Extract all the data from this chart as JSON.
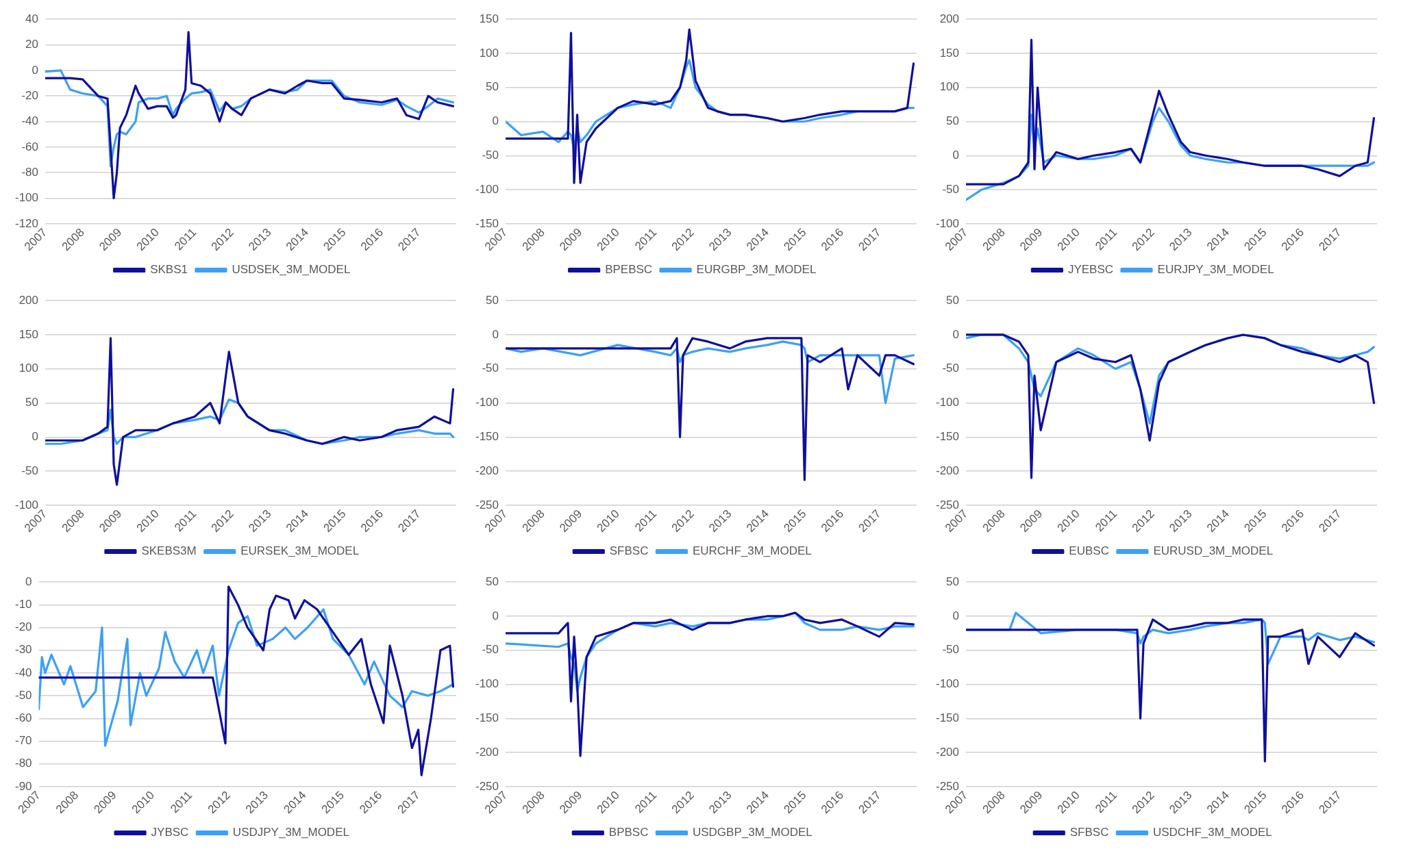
{
  "chart_data": [
    {
      "type": "line",
      "xlim": [
        "2007",
        "2018"
      ],
      "xticks": [
        "2007",
        "2008",
        "2009",
        "2010",
        "2011",
        "2012",
        "2013",
        "2014",
        "2015",
        "2016",
        "2017"
      ],
      "ylim": [
        -120,
        40
      ],
      "yticks": [
        -120,
        -100,
        -80,
        -60,
        -40,
        -20,
        0,
        20,
        40
      ],
      "grid": "y",
      "legend": "bottom",
      "x": [
        "2007-01",
        "2007-06",
        "2007-09",
        "2008-01",
        "2008-06",
        "2008-09",
        "2008-10",
        "2008-11",
        "2008-12",
        "2009-01",
        "2009-03",
        "2009-06",
        "2009-07",
        "2009-10",
        "2010-01",
        "2010-04",
        "2010-06",
        "2010-07",
        "2010-10",
        "2010-11",
        "2010-12",
        "2011-03",
        "2011-06",
        "2011-09",
        "2011-11",
        "2012-01",
        "2012-04",
        "2012-07",
        "2013-01",
        "2013-06",
        "2013-10",
        "2014-01",
        "2014-06",
        "2014-09",
        "2015-01",
        "2015-06",
        "2016-01",
        "2016-06",
        "2016-09",
        "2017-01",
        "2017-04",
        "2017-07",
        "2017-12"
      ],
      "series": [
        {
          "name": "SKBS1",
          "color": "#0f0f9e",
          "values": [
            -6,
            -6,
            -6,
            -7,
            -20,
            -22,
            -60,
            -100,
            -80,
            -45,
            -35,
            -12,
            -18,
            -30,
            -28,
            -28,
            -37,
            -35,
            -15,
            30,
            -10,
            -12,
            -18,
            -40,
            -25,
            -30,
            -35,
            -22,
            -15,
            -18,
            -12,
            -8,
            -10,
            -10,
            -22,
            -23,
            -25,
            -22,
            -35,
            -38,
            -20,
            -25,
            -28
          ]
        },
        {
          "name": "USDSEK_3M_MODEL",
          "color": "#3ba0f7",
          "values": [
            -1,
            0,
            -15,
            -18,
            -20,
            -28,
            -75,
            -60,
            -50,
            -48,
            -50,
            -40,
            -25,
            -22,
            -22,
            -20,
            -35,
            -30,
            -22,
            -20,
            -18,
            -17,
            -15,
            -32,
            -25,
            -30,
            -28,
            -22,
            -15,
            -17,
            -15,
            -8,
            -8,
            -8,
            -20,
            -25,
            -27,
            -23,
            -28,
            -33,
            -28,
            -22,
            -25
          ]
        }
      ]
    },
    {
      "type": "line",
      "xlim": [
        "2007",
        "2018"
      ],
      "xticks": [
        "2007",
        "2008",
        "2009",
        "2010",
        "2011",
        "2012",
        "2013",
        "2014",
        "2015",
        "2016",
        "2017"
      ],
      "ylim": [
        -150,
        150
      ],
      "yticks": [
        -150,
        -100,
        -50,
        0,
        50,
        100,
        150
      ],
      "grid": "y",
      "legend": "bottom",
      "x": [
        "2007-01",
        "2007-06",
        "2008-01",
        "2008-06",
        "2008-09",
        "2008-10",
        "2008-11",
        "2008-12",
        "2009-01",
        "2009-03",
        "2009-06",
        "2010-01",
        "2010-06",
        "2011-01",
        "2011-06",
        "2011-09",
        "2011-11",
        "2011-12",
        "2012-02",
        "2012-06",
        "2012-09",
        "2013-01",
        "2013-06",
        "2014-01",
        "2014-06",
        "2015-01",
        "2015-06",
        "2016-01",
        "2016-06",
        "2017-01",
        "2017-06",
        "2017-10",
        "2017-12"
      ],
      "series": [
        {
          "name": "BPEBSC",
          "color": "#0f0f9e",
          "values": [
            -25,
            -25,
            -25,
            -25,
            -25,
            130,
            -90,
            10,
            -90,
            -30,
            -10,
            20,
            30,
            25,
            30,
            50,
            90,
            135,
            60,
            20,
            15,
            10,
            10,
            5,
            0,
            5,
            10,
            15,
            15,
            15,
            15,
            20,
            85
          ]
        },
        {
          "name": "EURGBP_3M_MODEL",
          "color": "#3ba0f7",
          "values": [
            0,
            -20,
            -15,
            -30,
            -15,
            -20,
            -40,
            -10,
            -30,
            -20,
            0,
            20,
            25,
            30,
            20,
            50,
            80,
            90,
            50,
            25,
            15,
            10,
            10,
            5,
            0,
            0,
            5,
            10,
            15,
            15,
            15,
            20,
            20
          ]
        }
      ]
    },
    {
      "type": "line",
      "xlim": [
        "2007",
        "2018"
      ],
      "xticks": [
        "2007",
        "2008",
        "2009",
        "2010",
        "2011",
        "2012",
        "2013",
        "2014",
        "2015",
        "2016",
        "2017"
      ],
      "ylim": [
        -100,
        200
      ],
      "yticks": [
        -100,
        -50,
        0,
        50,
        100,
        150,
        200
      ],
      "grid": "y",
      "legend": "bottom",
      "x": [
        "2007-01",
        "2007-06",
        "2008-01",
        "2008-06",
        "2008-09",
        "2008-10",
        "2008-11",
        "2008-12",
        "2009-02",
        "2009-06",
        "2010-01",
        "2010-06",
        "2011-01",
        "2011-06",
        "2011-09",
        "2012-01",
        "2012-03",
        "2012-06",
        "2012-10",
        "2013-01",
        "2013-06",
        "2014-01",
        "2014-06",
        "2015-01",
        "2015-06",
        "2016-01",
        "2016-06",
        "2017-01",
        "2017-06",
        "2017-10",
        "2017-12"
      ],
      "series": [
        {
          "name": "JYEBSC",
          "color": "#0f0f9e",
          "values": [
            -42,
            -42,
            -42,
            -30,
            -10,
            170,
            -20,
            100,
            -20,
            5,
            -5,
            0,
            5,
            10,
            -10,
            60,
            95,
            60,
            20,
            5,
            0,
            -5,
            -10,
            -15,
            -15,
            -15,
            -20,
            -30,
            -15,
            -10,
            55
          ]
        },
        {
          "name": "EURJPY_3M_MODEL",
          "color": "#3ba0f7",
          "values": [
            -65,
            -50,
            -40,
            -30,
            -15,
            60,
            10,
            40,
            -10,
            0,
            -5,
            -5,
            0,
            10,
            -10,
            50,
            70,
            50,
            15,
            0,
            -5,
            -10,
            -10,
            -15,
            -15,
            -15,
            -15,
            -15,
            -15,
            -15,
            -10
          ]
        }
      ]
    },
    {
      "type": "line",
      "xlim": [
        "2007",
        "2018"
      ],
      "xticks": [
        "2007",
        "2008",
        "2009",
        "2010",
        "2011",
        "2012",
        "2013",
        "2014",
        "2015",
        "2016",
        "2017"
      ],
      "ylim": [
        -100,
        200
      ],
      "yticks": [
        -100,
        -50,
        0,
        50,
        100,
        150,
        200
      ],
      "grid": "y",
      "legend": "bottom",
      "x": [
        "2007-01",
        "2007-06",
        "2008-01",
        "2008-06",
        "2008-09",
        "2008-10",
        "2008-11",
        "2008-12",
        "2009-02",
        "2009-06",
        "2010-01",
        "2010-06",
        "2011-01",
        "2011-06",
        "2011-09",
        "2011-12",
        "2012-03",
        "2012-06",
        "2013-01",
        "2013-06",
        "2014-01",
        "2014-06",
        "2015-01",
        "2015-06",
        "2016-01",
        "2016-06",
        "2017-01",
        "2017-06",
        "2017-11",
        "2017-12"
      ],
      "series": [
        {
          "name": "SKEBS3M",
          "color": "#0f0f9e",
          "values": [
            -5,
            -5,
            -5,
            5,
            15,
            145,
            -40,
            -70,
            0,
            10,
            10,
            20,
            30,
            50,
            20,
            125,
            50,
            30,
            10,
            5,
            -5,
            -10,
            0,
            -5,
            0,
            10,
            15,
            30,
            20,
            70
          ]
        },
        {
          "name": "EURSEK_3M_MODEL",
          "color": "#3ba0f7",
          "values": [
            -10,
            -10,
            -5,
            5,
            10,
            40,
            0,
            -10,
            0,
            0,
            10,
            20,
            25,
            30,
            25,
            55,
            50,
            30,
            10,
            10,
            -5,
            -10,
            -5,
            0,
            0,
            5,
            10,
            5,
            5,
            0
          ]
        }
      ]
    },
    {
      "type": "line",
      "xlim": [
        "2007",
        "2018"
      ],
      "xticks": [
        "2007",
        "2008",
        "2009",
        "2010",
        "2011",
        "2012",
        "2013",
        "2014",
        "2015",
        "2016",
        "2017"
      ],
      "ylim": [
        -250,
        50
      ],
      "yticks": [
        -250,
        -200,
        -150,
        -100,
        -50,
        0,
        50
      ],
      "grid": "y",
      "legend": "bottom",
      "x": [
        "2007-01",
        "2007-06",
        "2008-01",
        "2009-01",
        "2010-01",
        "2011-01",
        "2011-06",
        "2011-08",
        "2011-09",
        "2011-10",
        "2012-01",
        "2012-06",
        "2013-01",
        "2013-06",
        "2014-01",
        "2014-06",
        "2014-12",
        "2015-01",
        "2015-02",
        "2015-06",
        "2016-01",
        "2016-03",
        "2016-06",
        "2017-01",
        "2017-03",
        "2017-06",
        "2017-12"
      ],
      "series": [
        {
          "name": "SFBSC",
          "color": "#0f0f9e",
          "values": [
            -20,
            -20,
            -20,
            -20,
            -20,
            -20,
            -20,
            -5,
            -150,
            -30,
            -5,
            -10,
            -20,
            -10,
            -5,
            -5,
            -5,
            -213,
            -30,
            -40,
            -20,
            -80,
            -30,
            -60,
            -30,
            -30,
            -43
          ]
        },
        {
          "name": "EURCHF_3M_MODEL",
          "color": "#3ba0f7",
          "values": [
            -20,
            -25,
            -20,
            -30,
            -15,
            -25,
            -30,
            -20,
            -40,
            -30,
            -25,
            -20,
            -25,
            -20,
            -15,
            -10,
            -15,
            -20,
            -40,
            -30,
            -30,
            -30,
            -30,
            -30,
            -100,
            -35,
            -30
          ]
        }
      ]
    },
    {
      "type": "line",
      "xlim": [
        "2007",
        "2018"
      ],
      "xticks": [
        "2007",
        "2008",
        "2009",
        "2010",
        "2011",
        "2012",
        "2013",
        "2014",
        "2015",
        "2016",
        "2017"
      ],
      "ylim": [
        -250,
        50
      ],
      "yticks": [
        -250,
        -200,
        -150,
        -100,
        -50,
        0,
        50
      ],
      "grid": "y",
      "legend": "bottom",
      "x": [
        "2007-01",
        "2007-06",
        "2008-01",
        "2008-06",
        "2008-09",
        "2008-10",
        "2008-11",
        "2009-01",
        "2009-06",
        "2010-01",
        "2010-06",
        "2011-01",
        "2011-06",
        "2011-09",
        "2011-12",
        "2012-03",
        "2012-06",
        "2013-01",
        "2013-06",
        "2014-01",
        "2014-06",
        "2015-01",
        "2015-06",
        "2016-01",
        "2016-06",
        "2017-01",
        "2017-06",
        "2017-10",
        "2017-12"
      ],
      "series": [
        {
          "name": "EUBSC",
          "color": "#0f0f9e",
          "values": [
            0,
            0,
            0,
            -10,
            -30,
            -210,
            -60,
            -140,
            -40,
            -25,
            -35,
            -40,
            -30,
            -80,
            -155,
            -70,
            -40,
            -25,
            -15,
            -5,
            0,
            -5,
            -15,
            -25,
            -30,
            -40,
            -30,
            -40,
            -100
          ]
        },
        {
          "name": "EURUSD_3M_MODEL",
          "color": "#3ba0f7",
          "values": [
            -5,
            0,
            0,
            -20,
            -40,
            -60,
            -80,
            -90,
            -40,
            -20,
            -30,
            -50,
            -40,
            -80,
            -130,
            -60,
            -40,
            -25,
            -15,
            -5,
            0,
            -5,
            -15,
            -20,
            -30,
            -35,
            -30,
            -25,
            -18
          ]
        }
      ]
    },
    {
      "type": "line",
      "xlim": [
        "2007",
        "2018"
      ],
      "xticks": [
        "2007",
        "2008",
        "2009",
        "2010",
        "2011",
        "2012",
        "2013",
        "2014",
        "2015",
        "2016",
        "2017"
      ],
      "ylim": [
        -90,
        0
      ],
      "yticks": [
        -90,
        -80,
        -70,
        -60,
        -50,
        -40,
        -30,
        -20,
        -10,
        0
      ],
      "grid": "y",
      "legend": "bottom",
      "series": [
        {
          "name": "JYBSC",
          "color": "#0f0f9e",
          "x": [
            "2007-01",
            "2011-08",
            "2011-09",
            "2011-12",
            "2012-01",
            "2012-04",
            "2012-07",
            "2012-12",
            "2013-02",
            "2013-04",
            "2013-08",
            "2013-10",
            "2014-01",
            "2014-05",
            "2014-09",
            "2015-03",
            "2015-07",
            "2015-10",
            "2016-02",
            "2016-04",
            "2016-08",
            "2016-11",
            "2017-01",
            "2017-02",
            "2017-05",
            "2017-08",
            "2017-11",
            "2017-12"
          ],
          "values": [
            -42,
            -42,
            -49,
            -71,
            -2,
            -10,
            -20,
            -30,
            -12,
            -6,
            -8,
            -16,
            -8,
            -12,
            -20,
            -32,
            -25,
            -45,
            -62,
            -28,
            -50,
            -73,
            -65,
            -85,
            -60,
            -30,
            -28,
            -46
          ]
        },
        {
          "name": "USDJPY_3M_MODEL",
          "color": "#3ba0f7",
          "x": [
            "2007-01",
            "2007-02",
            "2007-03",
            "2007-05",
            "2007-09",
            "2007-11",
            "2008-03",
            "2008-07",
            "2008-09",
            "2008-10",
            "2009-02",
            "2009-05",
            "2009-06",
            "2009-09",
            "2009-11",
            "2010-03",
            "2010-05",
            "2010-08",
            "2010-11",
            "2011-03",
            "2011-05",
            "2011-08",
            "2011-10",
            "2012-01",
            "2012-04",
            "2012-07",
            "2012-10",
            "2013-03",
            "2013-07",
            "2013-10",
            "2014-02",
            "2014-07",
            "2014-10",
            "2015-03",
            "2015-08",
            "2015-11",
            "2016-04",
            "2016-08",
            "2016-11",
            "2017-04",
            "2017-08",
            "2017-12"
          ],
          "values": [
            -56,
            -33,
            -40,
            -32,
            -45,
            -37,
            -55,
            -48,
            -20,
            -72,
            -52,
            -25,
            -63,
            -40,
            -50,
            -38,
            -22,
            -35,
            -42,
            -30,
            -40,
            -28,
            -50,
            -30,
            -18,
            -15,
            -28,
            -25,
            -20,
            -25,
            -20,
            -12,
            -25,
            -32,
            -45,
            -35,
            -50,
            -55,
            -48,
            -50,
            -48,
            -45
          ]
        }
      ]
    },
    {
      "type": "line",
      "xlim": [
        "2007",
        "2018"
      ],
      "xticks": [
        "2007",
        "2008",
        "2009",
        "2010",
        "2011",
        "2012",
        "2013",
        "2014",
        "2015",
        "2016",
        "2017"
      ],
      "ylim": [
        -250,
        50
      ],
      "yticks": [
        -250,
        -200,
        -150,
        -100,
        -50,
        0,
        50
      ],
      "grid": "y",
      "legend": "bottom",
      "x": [
        "2007-01",
        "2008-06",
        "2008-09",
        "2008-10",
        "2008-11",
        "2008-12",
        "2009-01",
        "2009-03",
        "2009-06",
        "2010-01",
        "2010-06",
        "2011-01",
        "2011-06",
        "2012-01",
        "2012-06",
        "2013-01",
        "2013-06",
        "2014-01",
        "2014-06",
        "2014-10",
        "2015-01",
        "2015-06",
        "2016-01",
        "2016-06",
        "2017-01",
        "2017-06",
        "2017-12"
      ],
      "series": [
        {
          "name": "BPBSC",
          "color": "#0f0f9e",
          "values": [
            -25,
            -25,
            -10,
            -125,
            -30,
            -100,
            -205,
            -60,
            -30,
            -20,
            -10,
            -10,
            -5,
            -20,
            -10,
            -10,
            -5,
            0,
            0,
            5,
            -5,
            -10,
            -5,
            -15,
            -30,
            -10,
            -12
          ]
        },
        {
          "name": "USDGBP_3M_MODEL",
          "color": "#3ba0f7",
          "values": [
            -40,
            -45,
            -40,
            -60,
            -70,
            -110,
            -90,
            -60,
            -40,
            -20,
            -10,
            -15,
            -10,
            -15,
            -10,
            -10,
            -5,
            -5,
            0,
            5,
            -10,
            -20,
            -20,
            -15,
            -20,
            -15,
            -15
          ]
        }
      ]
    },
    {
      "type": "line",
      "xlim": [
        "2007",
        "2018"
      ],
      "xticks": [
        "2007",
        "2008",
        "2009",
        "2010",
        "2011",
        "2012",
        "2013",
        "2014",
        "2015",
        "2016",
        "2017"
      ],
      "ylim": [
        -250,
        50
      ],
      "yticks": [
        -250,
        -200,
        -150,
        -100,
        -50,
        0,
        50
      ],
      "grid": "y",
      "legend": "bottom",
      "x": [
        "2007-01",
        "2008-03",
        "2008-05",
        "2009-01",
        "2010-01",
        "2011-01",
        "2011-08",
        "2011-09",
        "2011-10",
        "2012-01",
        "2012-06",
        "2013-01",
        "2013-06",
        "2014-01",
        "2014-06",
        "2014-12",
        "2015-01",
        "2015-02",
        "2015-06",
        "2016-01",
        "2016-03",
        "2016-06",
        "2017-01",
        "2017-06",
        "2017-12"
      ],
      "series": [
        {
          "name": "SFBSC",
          "color": "#0f0f9e",
          "values": [
            -20,
            -20,
            -20,
            -20,
            -20,
            -20,
            -20,
            -150,
            -40,
            -5,
            -20,
            -15,
            -10,
            -10,
            -5,
            -5,
            -213,
            -30,
            -30,
            -20,
            -70,
            -30,
            -60,
            -25,
            -43
          ]
        },
        {
          "name": "USDCHF_3M_MODEL",
          "color": "#3ba0f7",
          "values": [
            -20,
            -20,
            5,
            -25,
            -20,
            -20,
            -25,
            -40,
            -30,
            -20,
            -25,
            -20,
            -15,
            -10,
            -10,
            -5,
            -10,
            -70,
            -30,
            -30,
            -35,
            -25,
            -35,
            -30,
            -38
          ]
        }
      ]
    }
  ]
}
